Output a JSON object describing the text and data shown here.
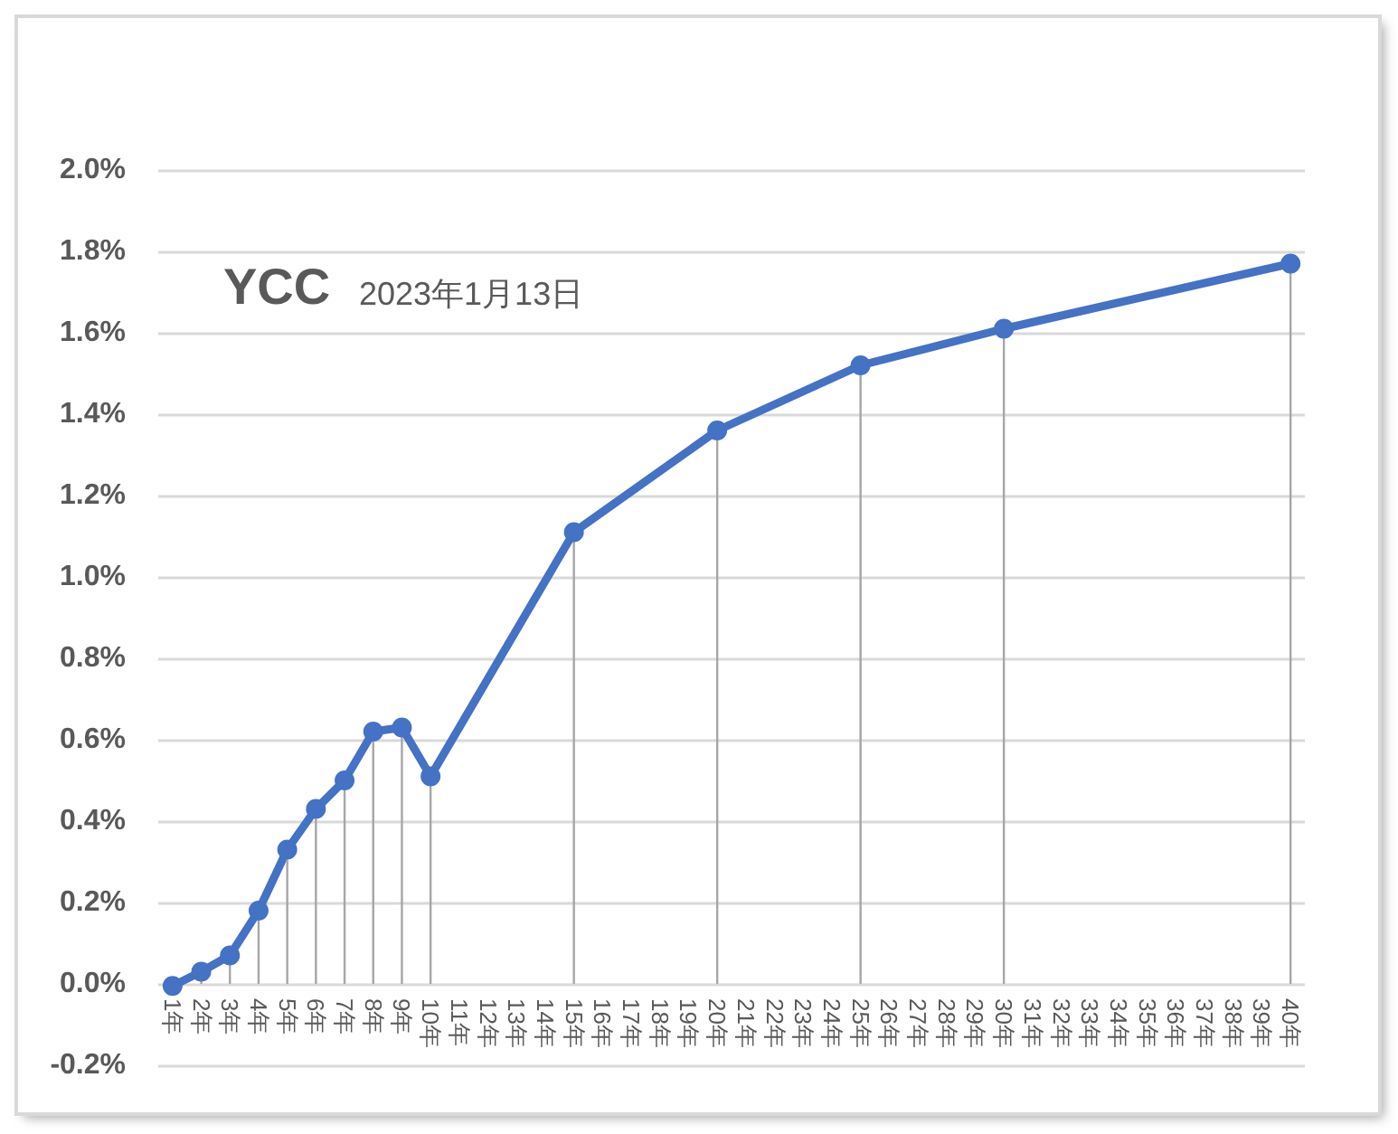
{
  "chart_data": {
    "type": "line",
    "title": "YCC",
    "subtitle": "2023年1月13日",
    "x": [
      1,
      2,
      3,
      4,
      5,
      6,
      7,
      8,
      9,
      10,
      15,
      20,
      25,
      30,
      40
    ],
    "xlim": [
      0.5,
      40.5
    ],
    "xticks": [
      {
        "value": 1,
        "label": "1年"
      },
      {
        "value": 2,
        "label": "2年"
      },
      {
        "value": 3,
        "label": "3年"
      },
      {
        "value": 4,
        "label": "4年"
      },
      {
        "value": 5,
        "label": "5年"
      },
      {
        "value": 6,
        "label": "6年"
      },
      {
        "value": 7,
        "label": "7年"
      },
      {
        "value": 8,
        "label": "8年"
      },
      {
        "value": 9,
        "label": "9年"
      },
      {
        "value": 10,
        "label": "10年"
      },
      {
        "value": 11,
        "label": "11年"
      },
      {
        "value": 12,
        "label": "12年"
      },
      {
        "value": 13,
        "label": "13年"
      },
      {
        "value": 14,
        "label": "14年"
      },
      {
        "value": 15,
        "label": "15年"
      },
      {
        "value": 16,
        "label": "16年"
      },
      {
        "value": 17,
        "label": "17年"
      },
      {
        "value": 18,
        "label": "18年"
      },
      {
        "value": 19,
        "label": "19年"
      },
      {
        "value": 20,
        "label": "20年"
      },
      {
        "value": 21,
        "label": "21年"
      },
      {
        "value": 22,
        "label": "22年"
      },
      {
        "value": 23,
        "label": "23年"
      },
      {
        "value": 24,
        "label": "24年"
      },
      {
        "value": 25,
        "label": "25年"
      },
      {
        "value": 26,
        "label": "26年"
      },
      {
        "value": 27,
        "label": "27年"
      },
      {
        "value": 28,
        "label": "28年"
      },
      {
        "value": 29,
        "label": "29年"
      },
      {
        "value": 30,
        "label": "30年"
      },
      {
        "value": 31,
        "label": "31年"
      },
      {
        "value": 32,
        "label": "32年"
      },
      {
        "value": 33,
        "label": "33年"
      },
      {
        "value": 34,
        "label": "34年"
      },
      {
        "value": 35,
        "label": "35年"
      },
      {
        "value": 36,
        "label": "36年"
      },
      {
        "value": 37,
        "label": "37年"
      },
      {
        "value": 38,
        "label": "38年"
      },
      {
        "value": 39,
        "label": "39年"
      },
      {
        "value": 40,
        "label": "40年"
      }
    ],
    "ylim": [
      -0.2,
      2.0
    ],
    "yticks": [
      {
        "value": -0.2,
        "label": "-0.2%"
      },
      {
        "value": 0,
        "label": "0.0%"
      },
      {
        "value": 0.2,
        "label": "0.2%"
      },
      {
        "value": 0.4,
        "label": "0.4%"
      },
      {
        "value": 0.6,
        "label": "0.6%"
      },
      {
        "value": 0.8,
        "label": "0.8%"
      },
      {
        "value": 1.0,
        "label": "1.0%"
      },
      {
        "value": 1.2,
        "label": "1.2%"
      },
      {
        "value": 1.4,
        "label": "1.4%"
      },
      {
        "value": 1.6,
        "label": "1.6%"
      },
      {
        "value": 1.8,
        "label": "1.8%"
      },
      {
        "value": 2.0,
        "label": "2.0%"
      }
    ],
    "grid": "y",
    "line_style": "solid",
    "series": [
      {
        "color": "#4472c4",
        "values": [
          -0.005,
          0.03,
          0.07,
          0.18,
          0.33,
          0.43,
          0.5,
          0.62,
          0.63,
          0.51,
          1.11,
          1.36,
          1.52,
          1.61,
          1.77
        ]
      },
      {
        "type": "lollipop",
        "marker": "circle",
        "color": "#a6a6a6",
        "colors": [
          "#4472c4",
          "#4472c4",
          "#4472c4",
          "#4472c4",
          "#4472c4",
          "#4472c4",
          "#4472c4",
          "#4472c4",
          "#4472c4",
          "#4472c4",
          "#4472c4",
          "#4472c4",
          "#4472c4",
          "#4472c4",
          "#4472c4"
        ],
        "values": [
          -0.005,
          0.03,
          0.07,
          0.18,
          0.33,
          0.43,
          0.5,
          0.62,
          0.63,
          0.51,
          1.11,
          1.36,
          1.52,
          1.61,
          1.77
        ]
      }
    ]
  }
}
